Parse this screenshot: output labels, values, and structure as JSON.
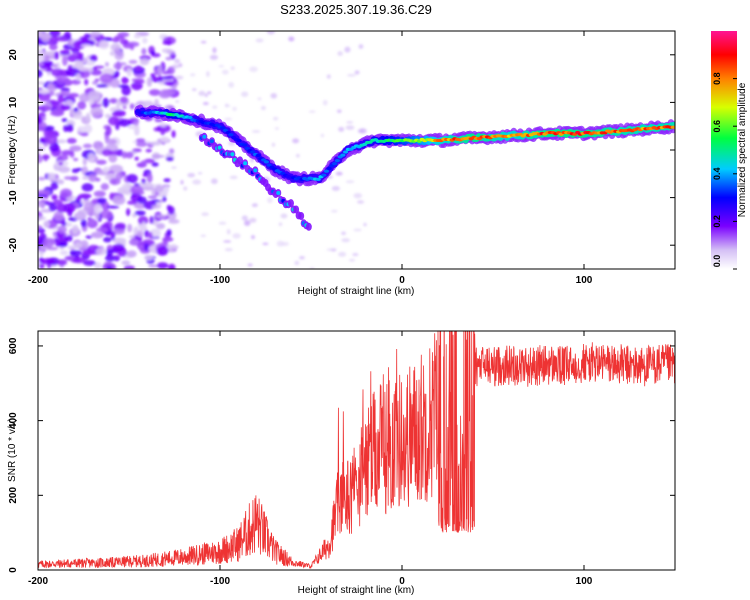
{
  "title": "S233.2025.307.19.36.C29",
  "chart_data": [
    {
      "type": "heatmap",
      "name": "spectrogram",
      "xlabel": "Height of straight line (km)",
      "ylabel": "Frequency (Hz)",
      "xlim": [
        -200,
        150
      ],
      "ylim": [
        -25,
        25
      ],
      "xticks": [
        -200,
        -100,
        0,
        100
      ],
      "yticks": [
        -20,
        -10,
        0,
        10,
        20
      ],
      "xtick_labels": [
        "-200",
        "-100",
        "0",
        "100"
      ],
      "ytick_labels": [
        "-20",
        "-10",
        "0",
        "10",
        "20"
      ],
      "colorbar": {
        "label": "Normalized spectral amplitude",
        "range": [
          0,
          1
        ],
        "ticks": [
          0.0,
          0.2,
          0.4,
          0.6,
          0.8
        ],
        "tick_labels": [
          "0.0",
          "0.2",
          "0.4",
          "0.6",
          "0.8"
        ]
      },
      "ridge": {
        "description_points": [
          {
            "x": -145,
            "f": 8,
            "amp": 0.3
          },
          {
            "x": -125,
            "f": 7.5,
            "amp": 0.55
          },
          {
            "x": -110,
            "f": 6,
            "amp": 0.3
          },
          {
            "x": -100,
            "f": 5,
            "amp": 0.35
          },
          {
            "x": -90,
            "f": 2,
            "amp": 0.3
          },
          {
            "x": -80,
            "f": -1,
            "amp": 0.35
          },
          {
            "x": -70,
            "f": -4,
            "amp": 0.35
          },
          {
            "x": -60,
            "f": -6,
            "amp": 0.3
          },
          {
            "x": -45,
            "f": -6,
            "amp": 0.45
          },
          {
            "x": -40,
            "f": -4,
            "amp": 0.35
          },
          {
            "x": -30,
            "f": 0,
            "amp": 0.4
          },
          {
            "x": -15,
            "f": 2,
            "amp": 0.5
          },
          {
            "x": 0,
            "f": 2,
            "amp": 0.6
          },
          {
            "x": 20,
            "f": 2,
            "amp": 0.8
          },
          {
            "x": 40,
            "f": 2.5,
            "amp": 0.9
          },
          {
            "x": 60,
            "f": 3,
            "amp": 0.8
          },
          {
            "x": 80,
            "f": 3.5,
            "amp": 0.9
          },
          {
            "x": 100,
            "f": 3.5,
            "amp": 0.9
          },
          {
            "x": 120,
            "f": 4,
            "amp": 0.85
          },
          {
            "x": 150,
            "f": 5,
            "amp": 0.85
          }
        ],
        "secondary_points": [
          {
            "x": -110,
            "f": 3
          },
          {
            "x": -95,
            "f": -1
          },
          {
            "x": -80,
            "f": -5
          },
          {
            "x": -70,
            "f": -9
          },
          {
            "x": -60,
            "f": -12
          },
          {
            "x": -50,
            "f": -17
          }
        ]
      }
    },
    {
      "type": "line",
      "name": "snr",
      "xlabel": "Height of straight line (km)",
      "ylabel": "SNR (10 * v/v)",
      "xlim": [
        -200,
        150
      ],
      "ylim": [
        0,
        640
      ],
      "xticks": [
        -200,
        -100,
        0,
        100
      ],
      "yticks": [
        0,
        200,
        400,
        600
      ],
      "xtick_labels": [
        "-200",
        "-100",
        "0",
        "100"
      ],
      "ytick_labels": [
        "0",
        "200",
        "400",
        "600"
      ],
      "color": "#ee3333",
      "series": [
        {
          "name": "SNR",
          "x": [
            -200,
            -180,
            -160,
            -140,
            -120,
            -100,
            -90,
            -85,
            -80,
            -75,
            -70,
            -60,
            -50,
            -40,
            -35,
            -30,
            -25,
            -20,
            -15,
            -10,
            -5,
            0,
            5,
            10,
            15,
            20,
            25,
            30,
            35,
            40,
            45,
            50,
            60,
            70,
            80,
            90,
            100,
            110,
            120,
            130,
            140,
            150
          ],
          "y": [
            15,
            18,
            20,
            25,
            35,
            50,
            70,
            100,
            130,
            90,
            50,
            20,
            10,
            70,
            180,
            200,
            230,
            280,
            310,
            330,
            340,
            350,
            360,
            380,
            400,
            440,
            470,
            500,
            520,
            540,
            550,
            545,
            550,
            545,
            550,
            545,
            555,
            555,
            550,
            545,
            550,
            550
          ]
        }
      ]
    }
  ]
}
